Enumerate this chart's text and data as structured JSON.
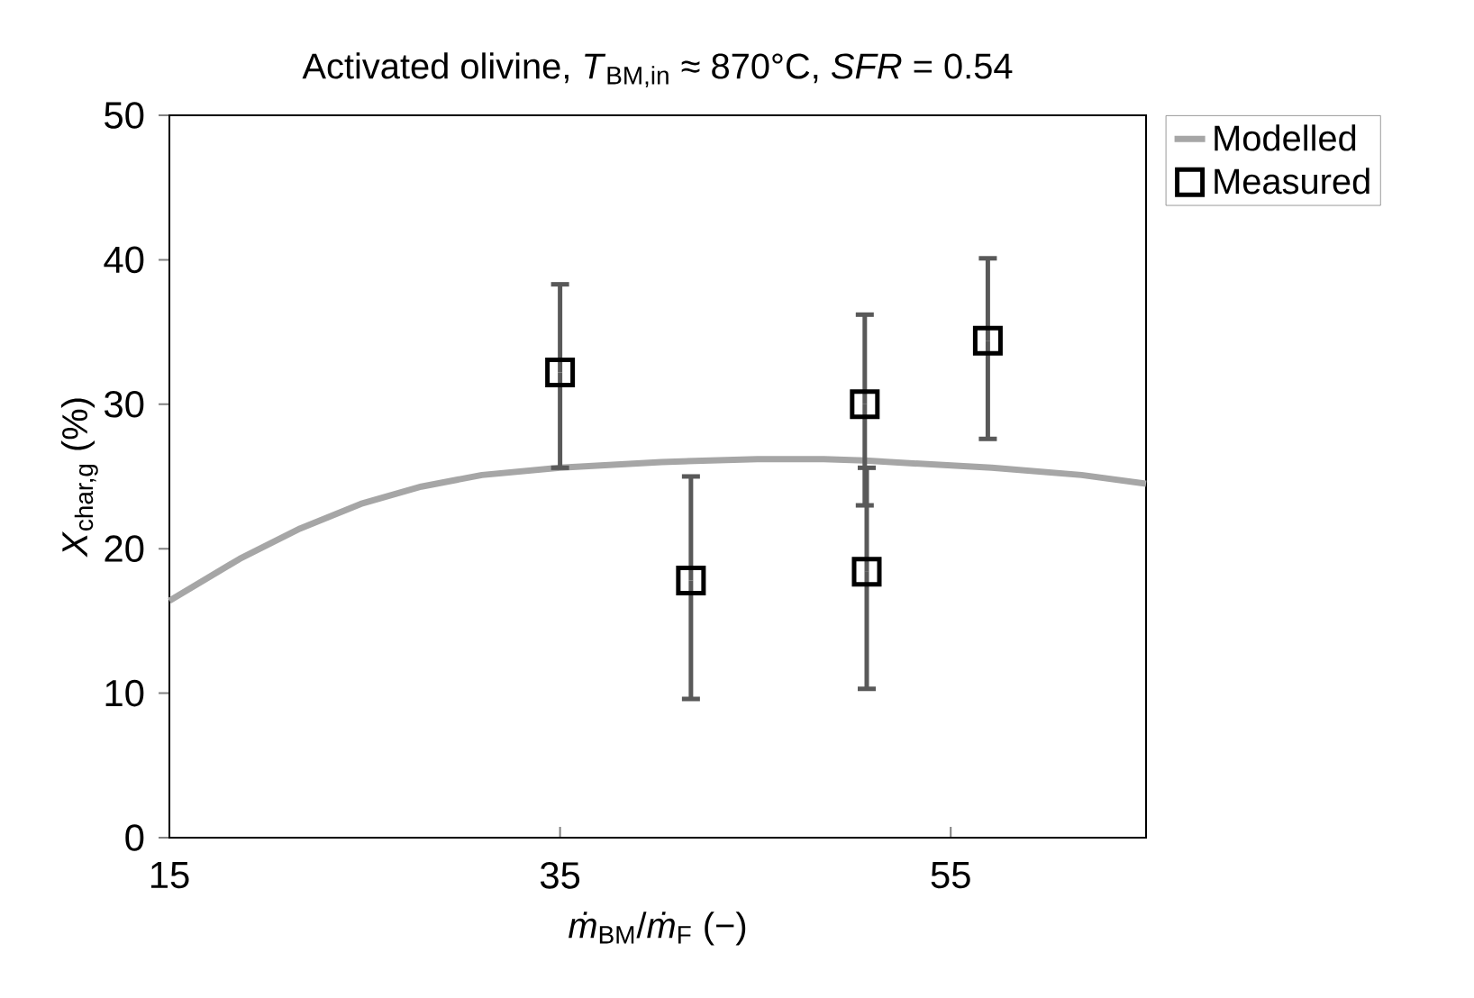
{
  "chart_data": {
    "type": "scatter",
    "title": "Activated olivine, *T*$_{BM,in}$ ≈ 870°C, *SFR* = 0.54",
    "xlabel": "*ṁ*$_{BM}$/*ṁ*$_{F}$ (−)",
    "ylabel": "*X*$_{char,g}$ (%)",
    "xlim": [
      15,
      65
    ],
    "ylim": [
      0,
      50
    ],
    "xticks": [
      15,
      35,
      55
    ],
    "yticks": [
      0,
      10,
      20,
      30,
      40,
      50
    ],
    "grid": false,
    "legend": "top right",
    "series": [
      {
        "name": "Modelled",
        "type": "line",
        "color": "#a6a6a6",
        "marker": "none",
        "line_style": "solid",
        "x": [
          15,
          18.6,
          21.7,
          24.8,
          27.9,
          31.0,
          35,
          40.2,
          45.1,
          48.5,
          50.6,
          57.1,
          61.7,
          65
        ],
        "values": [
          16.4,
          19.3,
          21.4,
          23.1,
          24.3,
          25.1,
          25.6,
          26.0,
          26.2,
          26.2,
          26.1,
          25.6,
          25.1,
          24.5
        ]
      },
      {
        "name": "Measured",
        "color": "#000000",
        "marker": "square",
        "x": [
          35,
          41.7,
          50.6,
          50.7,
          56.9
        ],
        "values": [
          32.2,
          17.8,
          30.0,
          18.4,
          34.4
        ],
        "errors": [
          [
            25.6,
            38.3
          ],
          [
            9.6,
            25.0
          ],
          [
            23.0,
            36.2
          ],
          [
            10.3,
            25.6
          ],
          [
            27.6,
            40.1
          ]
        ]
      }
    ]
  }
}
